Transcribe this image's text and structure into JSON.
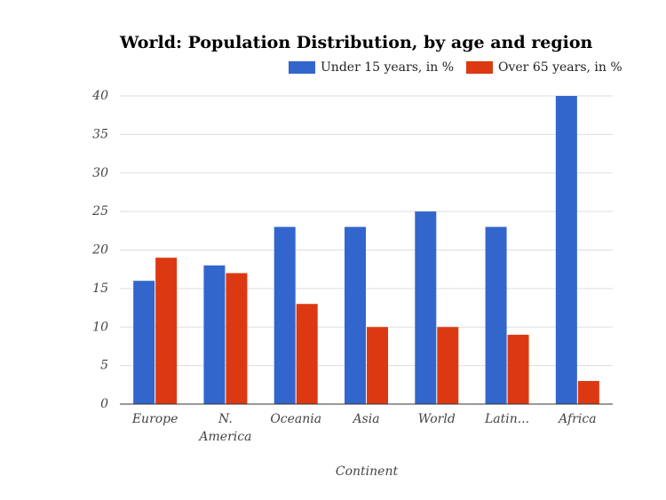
{
  "chart_data": {
    "type": "bar",
    "title": "World: Population Distribution, by age and region",
    "x_label": "Continent",
    "categories": [
      "Europe",
      "N. America",
      "Oceania",
      "Asia",
      "World",
      "Latin...",
      "Africa"
    ],
    "series": [
      {
        "name": "Under 15 years, in %",
        "color": "#3366cc",
        "values": [
          16,
          18,
          23,
          23,
          25,
          23,
          40
        ]
      },
      {
        "name": "Over 65 years, in %",
        "color": "#dc3912",
        "values": [
          19,
          17,
          13,
          10,
          10,
          9,
          3
        ]
      }
    ],
    "ylim": [
      0,
      40
    ],
    "yticks": [
      0,
      5,
      10,
      15,
      20,
      25,
      30,
      35,
      40
    ],
    "grid": true,
    "legend": "top-right"
  }
}
